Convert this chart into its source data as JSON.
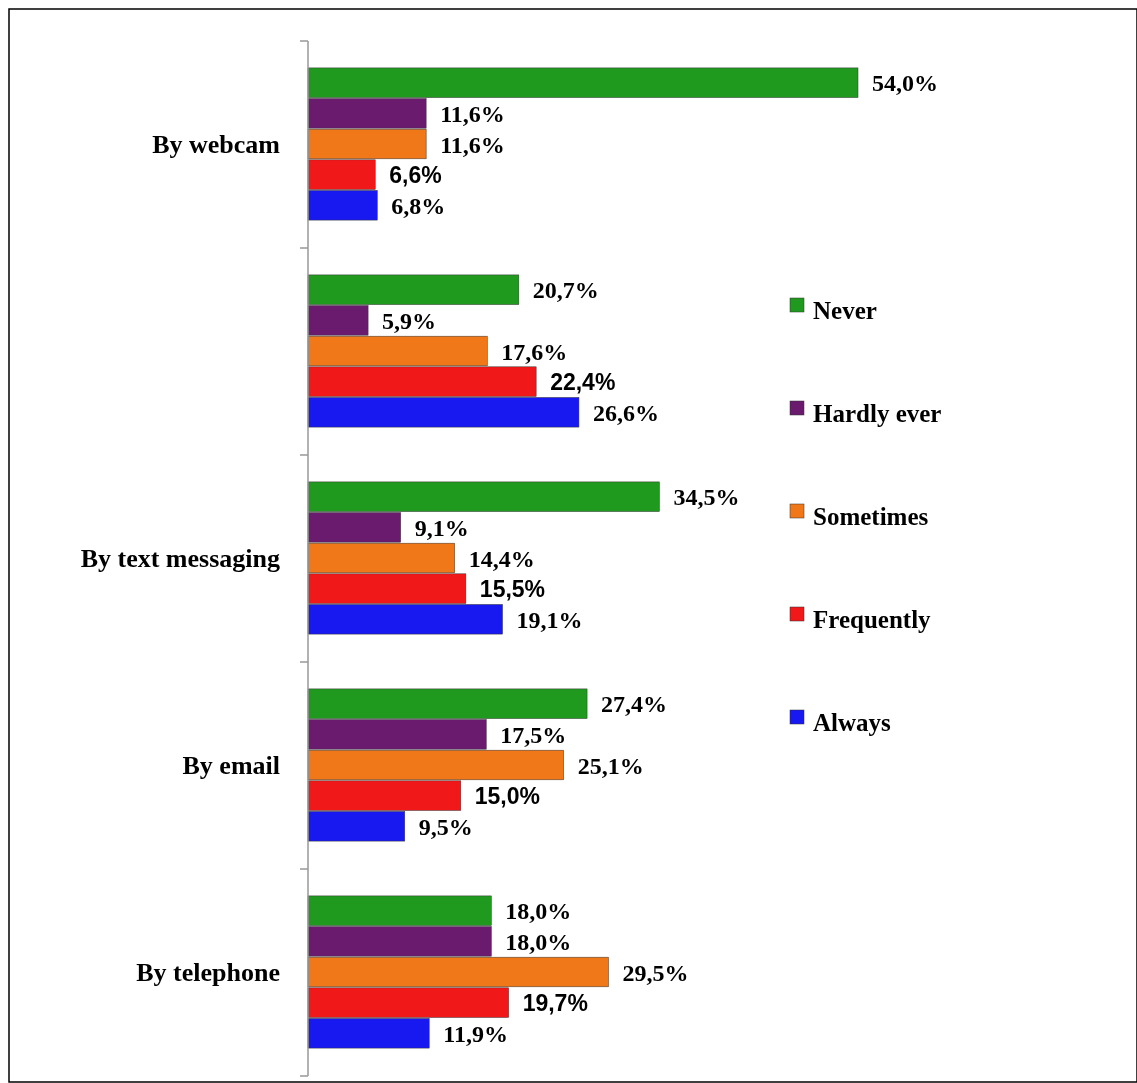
{
  "chart_data": {
    "type": "bar",
    "orientation": "horizontal",
    "categories": [
      "By webcam",
      null,
      "By text messaging",
      "By email",
      "By telephone"
    ],
    "series": [
      {
        "name": "Never",
        "color": "#1f9a1f",
        "values": [
          54.0,
          20.7,
          34.5,
          27.4,
          18.0
        ],
        "value_labels": [
          "54,0%",
          "20,7%",
          "34,5%",
          "27,4%",
          "18,0%"
        ]
      },
      {
        "name": "Hardly ever",
        "color": "#6a1b6e",
        "values": [
          11.6,
          5.9,
          9.1,
          17.5,
          18.0
        ],
        "value_labels": [
          "11,6%",
          "5,9%",
          "9,1%",
          "17,5%",
          "18,0%"
        ]
      },
      {
        "name": "Sometimes",
        "color": "#f07818",
        "values": [
          11.6,
          17.6,
          14.4,
          25.1,
          29.5
        ],
        "value_labels": [
          "11,6%",
          "17,6%",
          "14,4%",
          "25,1%",
          "29,5%"
        ]
      },
      {
        "name": "Frequently",
        "color": "#f01818",
        "values": [
          6.6,
          22.4,
          15.5,
          15.0,
          19.7
        ],
        "value_labels": [
          "6,6%",
          "22,4%",
          "15,5%",
          "15,0%",
          "19,7%"
        ]
      },
      {
        "name": "Always",
        "color": "#1818f0",
        "values": [
          6.8,
          26.6,
          19.1,
          9.5,
          11.9
        ],
        "value_labels": [
          "6,8%",
          "26,6%",
          "19,1%",
          "9,5%",
          "11,9%"
        ]
      }
    ],
    "legend": "right"
  }
}
